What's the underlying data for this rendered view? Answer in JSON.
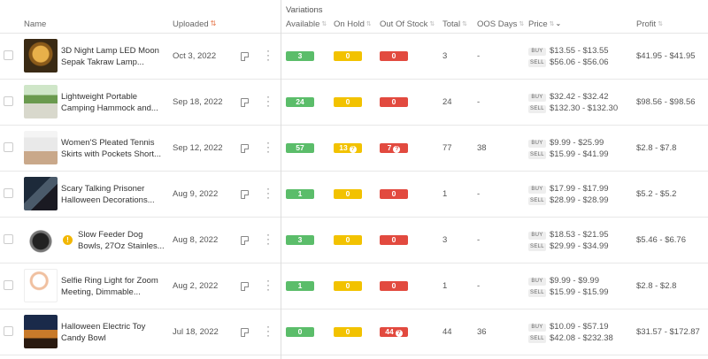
{
  "header": {
    "name": "Name",
    "uploaded": "Uploaded",
    "variations": "Variations",
    "available": "Available",
    "on_hold": "On Hold",
    "out_of_stock": "Out Of Stock",
    "total": "Total",
    "oos_days": "OOS Days",
    "price": "Price",
    "profit": "Profit"
  },
  "buy_tag": "BUY",
  "sell_tag": "SELL",
  "rows": [
    {
      "name": "3D Night Lamp LED Moon Sepak Takraw Lamp...",
      "uploaded": "Oct 3, 2022",
      "available": "3",
      "on_hold": "0",
      "out_of_stock": "0",
      "total": "3",
      "oos_days": "-",
      "buy": "$13.55 - $13.55",
      "sell": "$56.06 - $56.06",
      "profit": "$41.95 - $41.95"
    },
    {
      "name": "Lightweight Portable Camping Hammock and...",
      "uploaded": "Sep 18, 2022",
      "available": "24",
      "on_hold": "0",
      "out_of_stock": "0",
      "total": "24",
      "oos_days": "-",
      "buy": "$32.42 - $32.42",
      "sell": "$132.30 - $132.30",
      "profit": "$98.56 - $98.56"
    },
    {
      "name": "Women'S Pleated Tennis Skirts with Pockets Short...",
      "uploaded": "Sep 12, 2022",
      "available": "57",
      "on_hold": "13",
      "out_of_stock": "7",
      "total": "77",
      "oos_days": "38",
      "buy": "$9.99 - $25.99",
      "sell": "$15.99 - $41.99",
      "profit": "$2.8 - $7.8"
    },
    {
      "name": "Scary Talking Prisoner Halloween Decorations...",
      "uploaded": "Aug 9, 2022",
      "available": "1",
      "on_hold": "0",
      "out_of_stock": "0",
      "total": "1",
      "oos_days": "-",
      "buy": "$17.99 - $17.99",
      "sell": "$28.99 - $28.99",
      "profit": "$5.2 - $5.2"
    },
    {
      "name": "Slow Feeder Dog Bowls, 27Oz Stainles...",
      "uploaded": "Aug 8, 2022",
      "available": "3",
      "on_hold": "0",
      "out_of_stock": "0",
      "total": "3",
      "oos_days": "-",
      "buy": "$18.53 - $21.95",
      "sell": "$29.99 - $34.99",
      "profit": "$5.46 - $6.76"
    },
    {
      "name": "Selfie Ring Light for Zoom Meeting, Dimmable...",
      "uploaded": "Aug 2, 2022",
      "available": "1",
      "on_hold": "0",
      "out_of_stock": "0",
      "total": "1",
      "oos_days": "-",
      "buy": "$9.99 - $9.99",
      "sell": "$15.99 - $15.99",
      "profit": "$2.8 - $2.8"
    },
    {
      "name": "Halloween Electric Toy Candy Bowl",
      "uploaded": "Jul 18, 2022",
      "available": "0",
      "on_hold": "0",
      "out_of_stock": "44",
      "total": "44",
      "oos_days": "36",
      "buy": "$10.09 - $57.19",
      "sell": "$42.08 - $232.38",
      "profit": "$31.57 - $172.87"
    }
  ]
}
